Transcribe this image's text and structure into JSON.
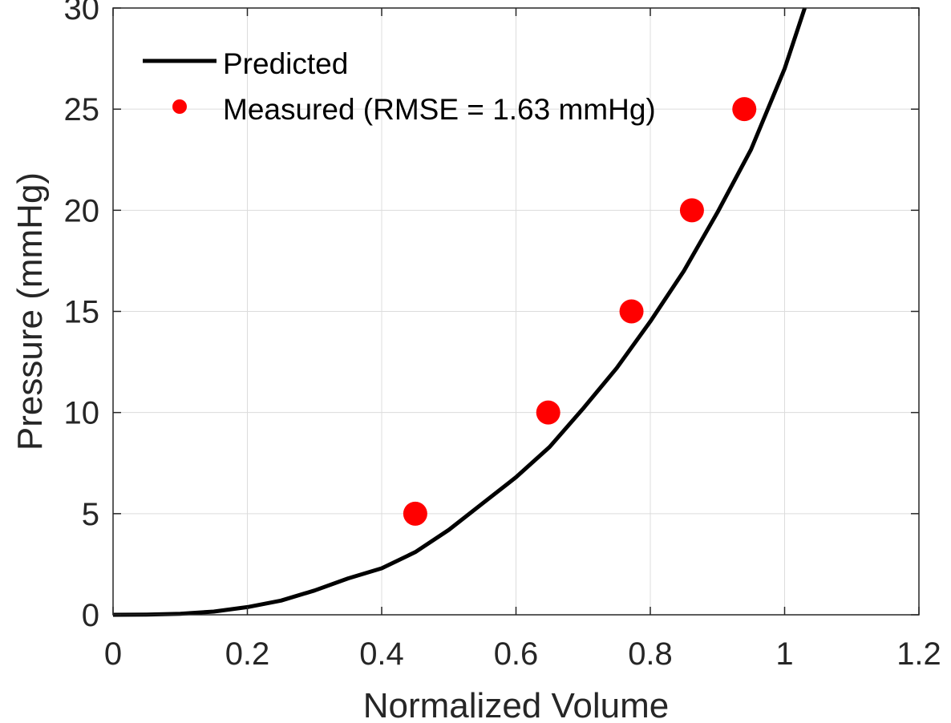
{
  "chart_data": {
    "type": "scatter",
    "xlabel": "Normalized Volume",
    "ylabel": "Pressure (mmHg)",
    "xlim": [
      0,
      1.2
    ],
    "ylim": [
      0,
      30
    ],
    "xticks": [
      "0",
      "0.2",
      "0.4",
      "0.6",
      "0.8",
      "1",
      "1.2"
    ],
    "yticks": [
      "0",
      "5",
      "10",
      "15",
      "20",
      "25",
      "30"
    ],
    "grid": true,
    "legend_position": "top-left",
    "series": [
      {
        "name": "Predicted",
        "kind": "line",
        "color": "#000000",
        "x": [
          0,
          0.05,
          0.1,
          0.15,
          0.2,
          0.25,
          0.3,
          0.35,
          0.4,
          0.45,
          0.5,
          0.55,
          0.6,
          0.65,
          0.7,
          0.75,
          0.8,
          0.85,
          0.9,
          0.95,
          1.0,
          1.03
        ],
        "y": [
          0,
          0.007,
          0.05,
          0.16,
          0.38,
          0.7,
          1.2,
          1.8,
          2.3,
          3.1,
          4.2,
          5.5,
          6.8,
          8.3,
          10.2,
          12.2,
          14.5,
          17.0,
          19.9,
          23.0,
          27.0,
          30.0
        ]
      },
      {
        "name": "Measured (RMSE = 1.63 mmHg)",
        "kind": "scatter",
        "color": "#ff0000",
        "x": [
          0.45,
          0.648,
          0.772,
          0.862,
          0.94
        ],
        "y": [
          5,
          10,
          15,
          20,
          25
        ]
      }
    ]
  }
}
